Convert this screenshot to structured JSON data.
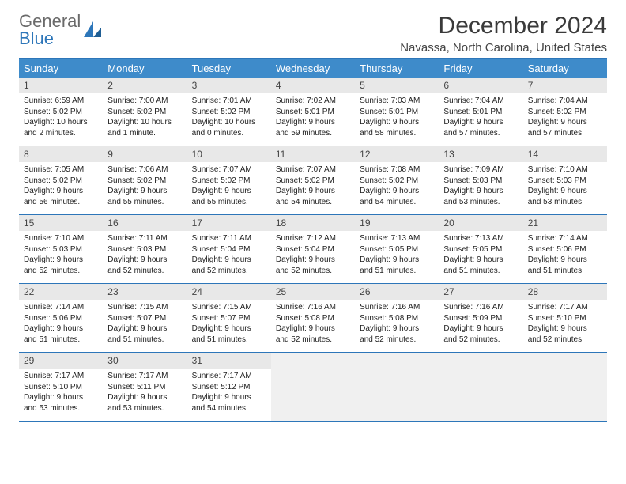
{
  "brand": {
    "part1": "General",
    "part2": "Blue"
  },
  "title": "December 2024",
  "subtitle": "Navassa, North Carolina, United States",
  "colors": {
    "accent": "#3e8bca",
    "accent_border": "#2d76b9",
    "daynum_bg": "#e8e8e8",
    "empty_bg": "#f0f0f0",
    "text": "#222222",
    "title_color": "#3a3a3a",
    "logo_gray": "#6a6a6a"
  },
  "weekdays": [
    "Sunday",
    "Monday",
    "Tuesday",
    "Wednesday",
    "Thursday",
    "Friday",
    "Saturday"
  ],
  "weeks": [
    [
      {
        "num": "1",
        "sunrise": "Sunrise: 6:59 AM",
        "sunset": "Sunset: 5:02 PM",
        "daylight": "Daylight: 10 hours and 2 minutes."
      },
      {
        "num": "2",
        "sunrise": "Sunrise: 7:00 AM",
        "sunset": "Sunset: 5:02 PM",
        "daylight": "Daylight: 10 hours and 1 minute."
      },
      {
        "num": "3",
        "sunrise": "Sunrise: 7:01 AM",
        "sunset": "Sunset: 5:02 PM",
        "daylight": "Daylight: 10 hours and 0 minutes."
      },
      {
        "num": "4",
        "sunrise": "Sunrise: 7:02 AM",
        "sunset": "Sunset: 5:01 PM",
        "daylight": "Daylight: 9 hours and 59 minutes."
      },
      {
        "num": "5",
        "sunrise": "Sunrise: 7:03 AM",
        "sunset": "Sunset: 5:01 PM",
        "daylight": "Daylight: 9 hours and 58 minutes."
      },
      {
        "num": "6",
        "sunrise": "Sunrise: 7:04 AM",
        "sunset": "Sunset: 5:01 PM",
        "daylight": "Daylight: 9 hours and 57 minutes."
      },
      {
        "num": "7",
        "sunrise": "Sunrise: 7:04 AM",
        "sunset": "Sunset: 5:02 PM",
        "daylight": "Daylight: 9 hours and 57 minutes."
      }
    ],
    [
      {
        "num": "8",
        "sunrise": "Sunrise: 7:05 AM",
        "sunset": "Sunset: 5:02 PM",
        "daylight": "Daylight: 9 hours and 56 minutes."
      },
      {
        "num": "9",
        "sunrise": "Sunrise: 7:06 AM",
        "sunset": "Sunset: 5:02 PM",
        "daylight": "Daylight: 9 hours and 55 minutes."
      },
      {
        "num": "10",
        "sunrise": "Sunrise: 7:07 AM",
        "sunset": "Sunset: 5:02 PM",
        "daylight": "Daylight: 9 hours and 55 minutes."
      },
      {
        "num": "11",
        "sunrise": "Sunrise: 7:07 AM",
        "sunset": "Sunset: 5:02 PM",
        "daylight": "Daylight: 9 hours and 54 minutes."
      },
      {
        "num": "12",
        "sunrise": "Sunrise: 7:08 AM",
        "sunset": "Sunset: 5:02 PM",
        "daylight": "Daylight: 9 hours and 54 minutes."
      },
      {
        "num": "13",
        "sunrise": "Sunrise: 7:09 AM",
        "sunset": "Sunset: 5:03 PM",
        "daylight": "Daylight: 9 hours and 53 minutes."
      },
      {
        "num": "14",
        "sunrise": "Sunrise: 7:10 AM",
        "sunset": "Sunset: 5:03 PM",
        "daylight": "Daylight: 9 hours and 53 minutes."
      }
    ],
    [
      {
        "num": "15",
        "sunrise": "Sunrise: 7:10 AM",
        "sunset": "Sunset: 5:03 PM",
        "daylight": "Daylight: 9 hours and 52 minutes."
      },
      {
        "num": "16",
        "sunrise": "Sunrise: 7:11 AM",
        "sunset": "Sunset: 5:03 PM",
        "daylight": "Daylight: 9 hours and 52 minutes."
      },
      {
        "num": "17",
        "sunrise": "Sunrise: 7:11 AM",
        "sunset": "Sunset: 5:04 PM",
        "daylight": "Daylight: 9 hours and 52 minutes."
      },
      {
        "num": "18",
        "sunrise": "Sunrise: 7:12 AM",
        "sunset": "Sunset: 5:04 PM",
        "daylight": "Daylight: 9 hours and 52 minutes."
      },
      {
        "num": "19",
        "sunrise": "Sunrise: 7:13 AM",
        "sunset": "Sunset: 5:05 PM",
        "daylight": "Daylight: 9 hours and 51 minutes."
      },
      {
        "num": "20",
        "sunrise": "Sunrise: 7:13 AM",
        "sunset": "Sunset: 5:05 PM",
        "daylight": "Daylight: 9 hours and 51 minutes."
      },
      {
        "num": "21",
        "sunrise": "Sunrise: 7:14 AM",
        "sunset": "Sunset: 5:06 PM",
        "daylight": "Daylight: 9 hours and 51 minutes."
      }
    ],
    [
      {
        "num": "22",
        "sunrise": "Sunrise: 7:14 AM",
        "sunset": "Sunset: 5:06 PM",
        "daylight": "Daylight: 9 hours and 51 minutes."
      },
      {
        "num": "23",
        "sunrise": "Sunrise: 7:15 AM",
        "sunset": "Sunset: 5:07 PM",
        "daylight": "Daylight: 9 hours and 51 minutes."
      },
      {
        "num": "24",
        "sunrise": "Sunrise: 7:15 AM",
        "sunset": "Sunset: 5:07 PM",
        "daylight": "Daylight: 9 hours and 51 minutes."
      },
      {
        "num": "25",
        "sunrise": "Sunrise: 7:16 AM",
        "sunset": "Sunset: 5:08 PM",
        "daylight": "Daylight: 9 hours and 52 minutes."
      },
      {
        "num": "26",
        "sunrise": "Sunrise: 7:16 AM",
        "sunset": "Sunset: 5:08 PM",
        "daylight": "Daylight: 9 hours and 52 minutes."
      },
      {
        "num": "27",
        "sunrise": "Sunrise: 7:16 AM",
        "sunset": "Sunset: 5:09 PM",
        "daylight": "Daylight: 9 hours and 52 minutes."
      },
      {
        "num": "28",
        "sunrise": "Sunrise: 7:17 AM",
        "sunset": "Sunset: 5:10 PM",
        "daylight": "Daylight: 9 hours and 52 minutes."
      }
    ],
    [
      {
        "num": "29",
        "sunrise": "Sunrise: 7:17 AM",
        "sunset": "Sunset: 5:10 PM",
        "daylight": "Daylight: 9 hours and 53 minutes."
      },
      {
        "num": "30",
        "sunrise": "Sunrise: 7:17 AM",
        "sunset": "Sunset: 5:11 PM",
        "daylight": "Daylight: 9 hours and 53 minutes."
      },
      {
        "num": "31",
        "sunrise": "Sunrise: 7:17 AM",
        "sunset": "Sunset: 5:12 PM",
        "daylight": "Daylight: 9 hours and 54 minutes."
      },
      null,
      null,
      null,
      null
    ]
  ]
}
